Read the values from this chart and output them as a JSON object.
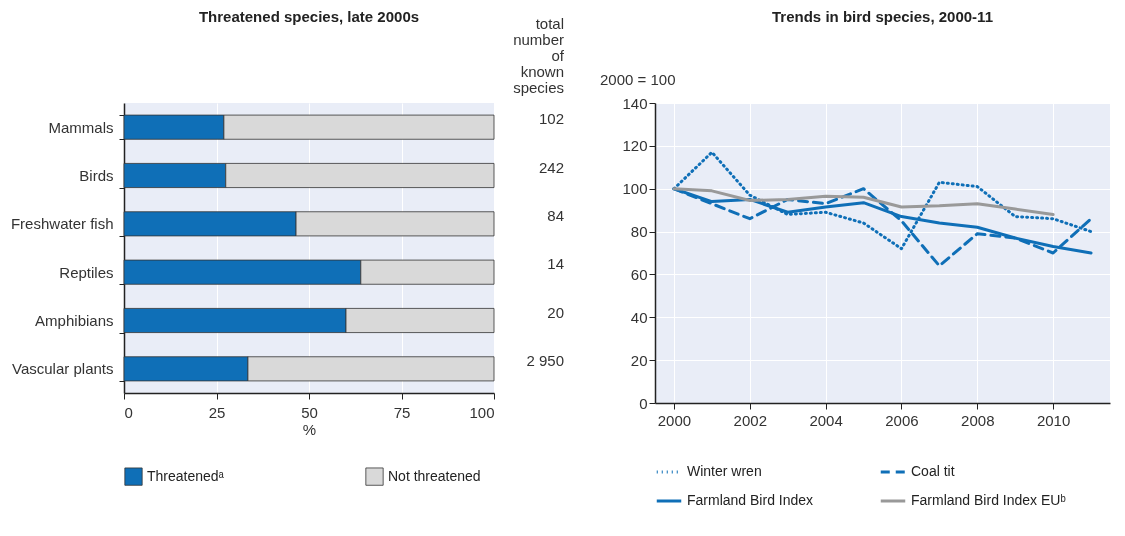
{
  "chart_data": [
    {
      "type": "bar",
      "orientation": "horizontal",
      "stacked": true,
      "title": "Threatened species, late 2000s",
      "xlabel": "%",
      "categories": [
        "Mammals",
        "Birds",
        "Freshwater fish",
        "Reptiles",
        "Amphibians",
        "Vascular plants"
      ],
      "series": [
        {
          "name": "Threatenedᵃ",
          "color": "#0f6fb7",
          "values": [
            27,
            27.5,
            46.5,
            64,
            60,
            33.5
          ]
        },
        {
          "name": "Not  threatened",
          "color": "#d9d9d9",
          "values": [
            73,
            72.5,
            53.5,
            36,
            40,
            66.5
          ]
        }
      ],
      "xlim": [
        0,
        100
      ],
      "xticks": [
        0,
        25,
        50,
        75,
        100
      ],
      "grid": "x",
      "legend": "bottom",
      "annotations": [
        "total number of known species",
        "102",
        "242",
        "84",
        "14",
        "20",
        "2 950"
      ]
    },
    {
      "type": "line",
      "title": "Trends in bird species, 2000-11",
      "ylabel": "2000 = 100",
      "x": [
        2000,
        2001,
        2002,
        2003,
        2004,
        2005,
        2006,
        2007,
        2008,
        2009,
        2010,
        2011
      ],
      "series": [
        {
          "name": "Winter wren",
          "color": "#0f6fb7",
          "line_style": "dotted",
          "values": [
            100,
            117,
            97,
            88,
            89,
            84,
            72,
            103,
            101,
            87,
            86,
            80
          ]
        },
        {
          "name": "Coal tit",
          "color": "#0f6fb7",
          "line_style": "dashed",
          "values": [
            100,
            93,
            86,
            95,
            93,
            100,
            85,
            64,
            79,
            77,
            70,
            86
          ]
        },
        {
          "name": "Farmland Bird Index",
          "color": "#0f6fb7",
          "line_style": "solid",
          "values": [
            100,
            94,
            95,
            89,
            91.5,
            93.5,
            87,
            84,
            82,
            77,
            73,
            70
          ]
        },
        {
          "name": "Farmland Bird Index EUᵇ",
          "color": "#999999",
          "line_style": "solid",
          "values": [
            100,
            99,
            94.5,
            95,
            96.5,
            96,
            91.5,
            92,
            93,
            90.5,
            88,
            null
          ]
        }
      ],
      "xlim": [
        1999.5,
        2011.5
      ],
      "xticks": [
        2000,
        2002,
        2004,
        2006,
        2008,
        2010
      ],
      "ylim": [
        0,
        140
      ],
      "yticks": [
        0,
        20,
        40,
        60,
        80,
        100,
        120,
        140
      ],
      "grid": true,
      "legend": "bottom"
    }
  ]
}
